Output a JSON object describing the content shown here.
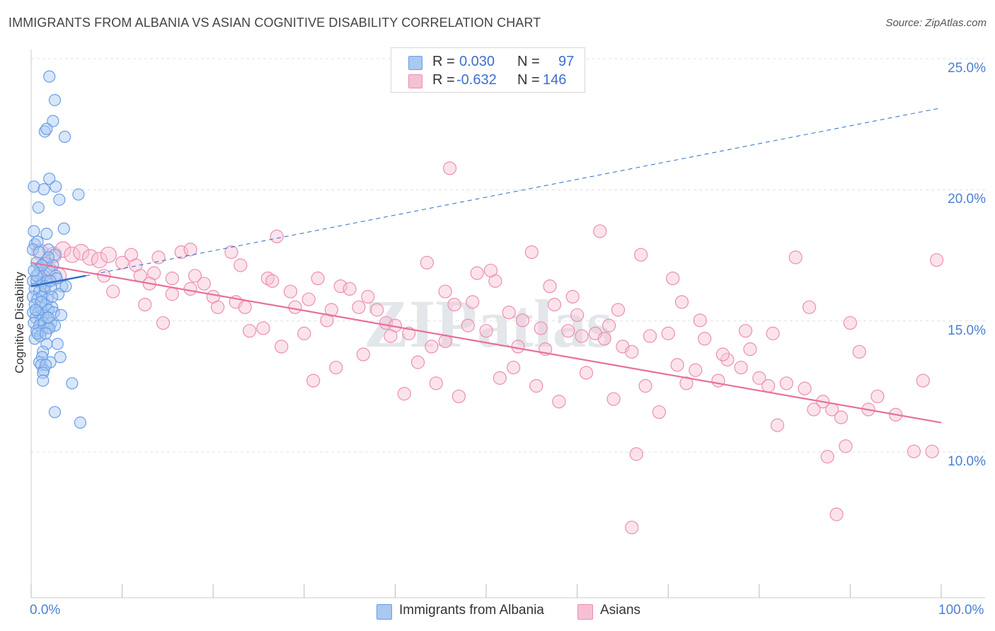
{
  "title": "IMMIGRANTS FROM ALBANIA VS ASIAN COGNITIVE DISABILITY CORRELATION CHART",
  "source": "Source: ZipAtlas.com",
  "watermark": "ZIPatlas",
  "colors": {
    "blue": "#6a9ee6",
    "blue_fill": "#a9c8f2",
    "blue_line": "#2f6cc9",
    "pink": "#ec8fb0",
    "pink_fill": "#f6c0d4",
    "pink_line": "#e8709a",
    "axis_text": "#4a7fd4",
    "grid": "#e0e0e0"
  },
  "stats": {
    "row1": {
      "r_label": "R =",
      "r_value": "0.030",
      "n_label": "N =",
      "n_value": "97"
    },
    "row2": {
      "r_label": "R =",
      "r_value": "-0.632",
      "n_label": "N =",
      "n_value": "146"
    }
  },
  "legend": {
    "albania": "Immigrants from Albania",
    "asians": "Asians"
  },
  "chart_data": {
    "type": "scatter",
    "title": "IMMIGRANTS FROM ALBANIA VS ASIAN COGNITIVE DISABILITY CORRELATION CHART",
    "xlabel": "",
    "ylabel": "Cognitive Disability",
    "xlim": [
      0,
      100
    ],
    "ylim": [
      5,
      26
    ],
    "x_tick_labels": [
      "0.0%",
      "100.0%"
    ],
    "y_ticks": [
      10,
      15,
      20,
      25
    ],
    "y_tick_labels": [
      "10.0%",
      "15.0%",
      "20.0%",
      "25.0%"
    ],
    "grid": true,
    "legend_position": "bottom-center",
    "series": [
      {
        "name": "Immigrants from Albania",
        "color": "#6a9ee6",
        "trend": {
          "x": [
            0,
            6
          ],
          "y": [
            16.7,
            17.1
          ],
          "dashed_extension": {
            "x": [
              6,
              100
            ],
            "y": [
              17.1,
              23.5
            ]
          }
        },
        "points": [
          [
            2.0,
            24.7
          ],
          [
            2.6,
            23.8
          ],
          [
            2.4,
            23.0
          ],
          [
            1.5,
            22.6
          ],
          [
            1.7,
            22.7
          ],
          [
            3.7,
            22.4
          ],
          [
            0.3,
            20.5
          ],
          [
            1.4,
            20.4
          ],
          [
            2.0,
            20.8
          ],
          [
            2.7,
            20.5
          ],
          [
            3.1,
            20.0
          ],
          [
            5.2,
            20.2
          ],
          [
            0.8,
            19.7
          ],
          [
            3.6,
            18.9
          ],
          [
            0.3,
            18.8
          ],
          [
            0.4,
            18.3
          ],
          [
            0.7,
            18.4
          ],
          [
            1.7,
            18.7
          ],
          [
            0.2,
            18.1
          ],
          [
            1.9,
            18.1
          ],
          [
            2.6,
            17.9
          ],
          [
            0.6,
            17.6
          ],
          [
            1.0,
            17.4
          ],
          [
            1.6,
            17.6
          ],
          [
            2.4,
            17.5
          ],
          [
            0.8,
            17.2
          ],
          [
            1.4,
            17.1
          ],
          [
            2.0,
            17.3
          ],
          [
            2.7,
            17.1
          ],
          [
            0.2,
            16.9
          ],
          [
            0.6,
            16.9
          ],
          [
            1.2,
            16.8
          ],
          [
            1.8,
            16.9
          ],
          [
            3.4,
            16.7
          ],
          [
            0.4,
            16.6
          ],
          [
            0.9,
            16.5
          ],
          [
            1.5,
            16.5
          ],
          [
            2.2,
            16.6
          ],
          [
            3.8,
            16.7
          ],
          [
            0.2,
            16.3
          ],
          [
            0.7,
            16.2
          ],
          [
            1.2,
            16.3
          ],
          [
            1.8,
            16.2
          ],
          [
            0.4,
            16.0
          ],
          [
            1.0,
            15.9
          ],
          [
            1.6,
            16.0
          ],
          [
            2.3,
            15.9
          ],
          [
            0.2,
            15.7
          ],
          [
            0.8,
            15.7
          ],
          [
            1.3,
            15.6
          ],
          [
            1.9,
            15.8
          ],
          [
            2.5,
            15.7
          ],
          [
            3.3,
            15.6
          ],
          [
            0.5,
            15.5
          ],
          [
            1.1,
            15.4
          ],
          [
            1.7,
            15.5
          ],
          [
            0.3,
            15.3
          ],
          [
            0.9,
            15.2
          ],
          [
            1.4,
            15.3
          ],
          [
            2.2,
            15.3
          ],
          [
            2.6,
            15.2
          ],
          [
            0.6,
            15.0
          ],
          [
            1.2,
            15.0
          ],
          [
            1.8,
            15.1
          ],
          [
            0.4,
            14.7
          ],
          [
            1.0,
            14.8
          ],
          [
            1.7,
            14.5
          ],
          [
            2.9,
            14.5
          ],
          [
            1.3,
            14.2
          ],
          [
            1.2,
            14.0
          ],
          [
            3.2,
            14.0
          ],
          [
            0.9,
            13.8
          ],
          [
            1.1,
            13.7
          ],
          [
            2.1,
            13.8
          ],
          [
            1.4,
            13.5
          ],
          [
            1.6,
            13.7
          ],
          [
            1.3,
            13.4
          ],
          [
            1.3,
            13.1
          ],
          [
            4.5,
            13.0
          ],
          [
            2.6,
            11.9
          ],
          [
            5.4,
            11.5
          ],
          [
            0.6,
            17.1
          ],
          [
            1.5,
            16.7
          ],
          [
            2.8,
            17.0
          ],
          [
            3.0,
            16.4
          ],
          [
            1.1,
            16.1
          ],
          [
            2.0,
            15.1
          ],
          [
            0.7,
            14.9
          ],
          [
            1.9,
            17.8
          ],
          [
            0.9,
            18.0
          ],
          [
            2.3,
            16.3
          ],
          [
            1.6,
            14.9
          ],
          [
            0.5,
            15.8
          ],
          [
            1.2,
            17.5
          ],
          [
            2.1,
            16.9
          ],
          [
            0.3,
            17.3
          ],
          [
            1.9,
            15.5
          ]
        ]
      },
      {
        "name": "Asians",
        "color": "#ec8fb0",
        "trend": {
          "x": [
            0,
            100
          ],
          "y": [
            17.6,
            11.5
          ]
        },
        "points": [
          [
            1.0,
            18.0
          ],
          [
            2.5,
            17.9
          ],
          [
            3.5,
            18.1
          ],
          [
            4.5,
            17.9
          ],
          [
            5.5,
            18.0
          ],
          [
            6.5,
            17.8
          ],
          [
            1.5,
            17.5
          ],
          [
            2.0,
            17.3
          ],
          [
            3.0,
            17.1
          ],
          [
            1.2,
            16.9
          ],
          [
            7.5,
            17.7
          ],
          [
            8.5,
            17.9
          ],
          [
            10.0,
            17.6
          ],
          [
            11.0,
            17.9
          ],
          [
            11.5,
            17.5
          ],
          [
            13.5,
            17.2
          ],
          [
            14.0,
            17.8
          ],
          [
            15.5,
            17.0
          ],
          [
            16.5,
            18.0
          ],
          [
            17.5,
            18.1
          ],
          [
            18.0,
            17.1
          ],
          [
            17.5,
            16.6
          ],
          [
            15.5,
            16.4
          ],
          [
            12.0,
            17.1
          ],
          [
            13.0,
            16.8
          ],
          [
            19.0,
            16.8
          ],
          [
            20.0,
            16.3
          ],
          [
            22.0,
            18.0
          ],
          [
            23.0,
            17.5
          ],
          [
            22.5,
            16.1
          ],
          [
            23.5,
            15.9
          ],
          [
            26.0,
            17.0
          ],
          [
            26.5,
            16.9
          ],
          [
            28.5,
            16.5
          ],
          [
            29.0,
            15.9
          ],
          [
            30.5,
            16.2
          ],
          [
            31.5,
            17.0
          ],
          [
            32.5,
            15.4
          ],
          [
            33.0,
            15.8
          ],
          [
            34.0,
            16.7
          ],
          [
            35.0,
            16.6
          ],
          [
            36.0,
            15.9
          ],
          [
            37.0,
            16.3
          ],
          [
            38.0,
            15.8
          ],
          [
            39.0,
            15.3
          ],
          [
            40.0,
            15.2
          ],
          [
            41.5,
            14.9
          ],
          [
            43.5,
            17.6
          ],
          [
            45.5,
            14.6
          ],
          [
            46.5,
            16.0
          ],
          [
            48.0,
            15.2
          ],
          [
            50.0,
            15.0
          ],
          [
            52.5,
            15.7
          ],
          [
            54.0,
            15.4
          ],
          [
            56.0,
            15.1
          ],
          [
            57.5,
            16.0
          ],
          [
            59.0,
            15.0
          ],
          [
            60.5,
            14.8
          ],
          [
            62.0,
            14.9
          ],
          [
            63.0,
            14.7
          ],
          [
            65.0,
            14.4
          ],
          [
            66.0,
            14.2
          ],
          [
            68.0,
            14.8
          ],
          [
            70.0,
            14.9
          ],
          [
            71.0,
            13.7
          ],
          [
            73.0,
            13.5
          ],
          [
            74.0,
            14.7
          ],
          [
            75.5,
            13.1
          ],
          [
            76.5,
            13.9
          ],
          [
            78.0,
            13.6
          ],
          [
            80.0,
            13.2
          ],
          [
            81.0,
            12.9
          ],
          [
            83.0,
            13.0
          ],
          [
            85.0,
            12.8
          ],
          [
            87.0,
            12.3
          ],
          [
            88.0,
            12.0
          ],
          [
            90.0,
            15.3
          ],
          [
            91.0,
            14.2
          ],
          [
            93.0,
            12.5
          ],
          [
            95.0,
            11.8
          ],
          [
            98.0,
            13.1
          ],
          [
            99.5,
            17.7
          ],
          [
            46.0,
            21.2
          ],
          [
            27.0,
            18.6
          ],
          [
            49.0,
            17.2
          ],
          [
            55.0,
            18.0
          ],
          [
            62.5,
            18.8
          ],
          [
            67.0,
            17.9
          ],
          [
            84.0,
            17.8
          ],
          [
            44.0,
            14.4
          ],
          [
            47.0,
            12.5
          ],
          [
            51.5,
            13.2
          ],
          [
            53.0,
            13.6
          ],
          [
            55.5,
            12.9
          ],
          [
            58.0,
            12.3
          ],
          [
            61.0,
            13.4
          ],
          [
            64.0,
            12.4
          ],
          [
            67.5,
            12.9
          ],
          [
            69.0,
            11.9
          ],
          [
            72.0,
            13.0
          ],
          [
            76.0,
            14.1
          ],
          [
            79.0,
            14.3
          ],
          [
            82.0,
            11.4
          ],
          [
            86.0,
            12.0
          ],
          [
            89.0,
            11.7
          ],
          [
            92.0,
            12.0
          ],
          [
            66.5,
            10.3
          ],
          [
            87.5,
            10.2
          ],
          [
            89.5,
            10.6
          ],
          [
            97.0,
            10.4
          ],
          [
            99.0,
            10.4
          ],
          [
            66.0,
            7.5
          ],
          [
            88.5,
            8.0
          ],
          [
            8.0,
            17.1
          ],
          [
            9.0,
            16.5
          ],
          [
            12.5,
            16.0
          ],
          [
            14.5,
            15.3
          ],
          [
            20.5,
            15.9
          ],
          [
            24.0,
            15.0
          ],
          [
            25.5,
            15.1
          ],
          [
            27.5,
            14.4
          ],
          [
            30.0,
            14.9
          ],
          [
            31.0,
            13.1
          ],
          [
            33.5,
            13.6
          ],
          [
            36.5,
            14.1
          ],
          [
            39.5,
            14.8
          ],
          [
            41.0,
            12.6
          ],
          [
            42.5,
            13.8
          ],
          [
            44.5,
            13.0
          ],
          [
            45.5,
            16.5
          ],
          [
            48.5,
            16.1
          ],
          [
            51.0,
            16.9
          ],
          [
            53.5,
            14.4
          ],
          [
            56.5,
            14.3
          ],
          [
            59.5,
            16.3
          ],
          [
            63.5,
            15.2
          ],
          [
            64.5,
            15.8
          ],
          [
            71.5,
            16.1
          ],
          [
            73.5,
            15.4
          ],
          [
            78.5,
            15.0
          ],
          [
            81.5,
            14.9
          ],
          [
            85.5,
            15.9
          ],
          [
            70.5,
            17.0
          ],
          [
            60.0,
            15.6
          ],
          [
            50.5,
            17.3
          ],
          [
            57.0,
            16.7
          ]
        ]
      }
    ]
  }
}
